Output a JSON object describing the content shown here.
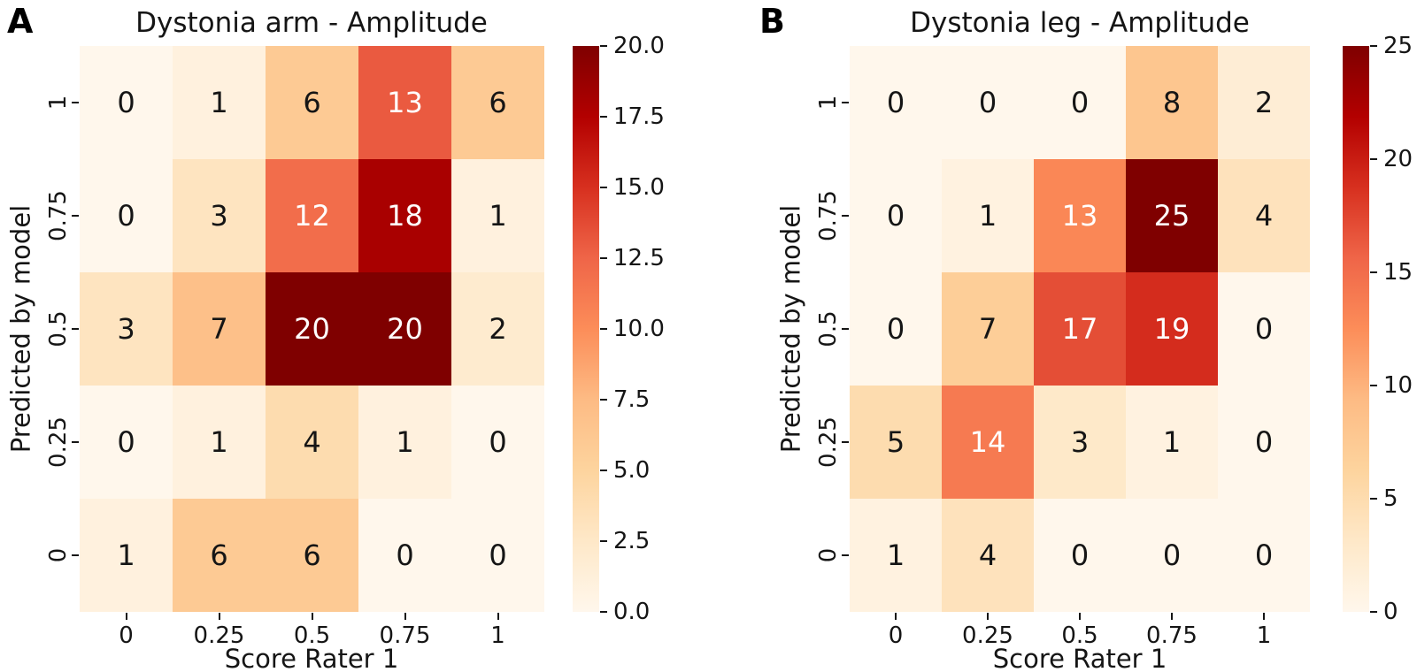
{
  "colors": {
    "background": "#ffffff",
    "colormap": "OrRd",
    "colormap_anchors": [
      "#fff7ec",
      "#fee8c8",
      "#fdd49e",
      "#fdbb84",
      "#fc8d59",
      "#ef6548",
      "#d7301f",
      "#b30000",
      "#7f0000"
    ],
    "annotation_dark": "#151515",
    "annotation_light": "#ffffff",
    "annotation_white_threshold": 0.5,
    "tick_color": "#151515"
  },
  "chart_data": [
    {
      "type": "heatmap",
      "panel_letter": "A",
      "title": "Dystonia arm - Amplitude",
      "xlabel": "Score Rater 1",
      "ylabel": "Predicted by model",
      "x_tick_labels": [
        "0",
        "0.25",
        "0.5",
        "0.75",
        "1"
      ],
      "y_tick_labels": [
        "1",
        "0.75",
        "0.5",
        "0.25",
        "0"
      ],
      "values": [
        [
          0,
          1,
          6,
          13,
          6
        ],
        [
          0,
          3,
          12,
          18,
          1
        ],
        [
          3,
          7,
          20,
          20,
          2
        ],
        [
          0,
          1,
          4,
          1,
          0
        ],
        [
          1,
          6,
          6,
          0,
          0
        ]
      ],
      "vmin": 0,
      "vmax": 20,
      "colorbar_tick_labels": [
        "20.0",
        "17.5",
        "15.0",
        "12.5",
        "10.0",
        "7.5",
        "5.0",
        "2.5",
        "0.0"
      ],
      "colorbar_tick_values": [
        20,
        17.5,
        15,
        12.5,
        10,
        7.5,
        5,
        2.5,
        0
      ],
      "grid": false,
      "legend_position": "right-colorbar"
    },
    {
      "type": "heatmap",
      "panel_letter": "B",
      "title": "Dystonia leg - Amplitude",
      "xlabel": "Score Rater 1",
      "ylabel": "Predicted by model",
      "x_tick_labels": [
        "0",
        "0.25",
        "0.5",
        "0.75",
        "1"
      ],
      "y_tick_labels": [
        "1",
        "0.75",
        "0.5",
        "0.25",
        "0"
      ],
      "values": [
        [
          0,
          0,
          0,
          8,
          2
        ],
        [
          0,
          1,
          13,
          25,
          4
        ],
        [
          0,
          7,
          17,
          19,
          0
        ],
        [
          5,
          14,
          3,
          1,
          0
        ],
        [
          1,
          4,
          0,
          0,
          0
        ]
      ],
      "vmin": 0,
      "vmax": 25,
      "colorbar_tick_labels": [
        "25",
        "20",
        "15",
        "10",
        "5",
        "0"
      ],
      "colorbar_tick_values": [
        25,
        20,
        15,
        10,
        5,
        0
      ],
      "grid": false,
      "legend_position": "right-colorbar"
    }
  ]
}
